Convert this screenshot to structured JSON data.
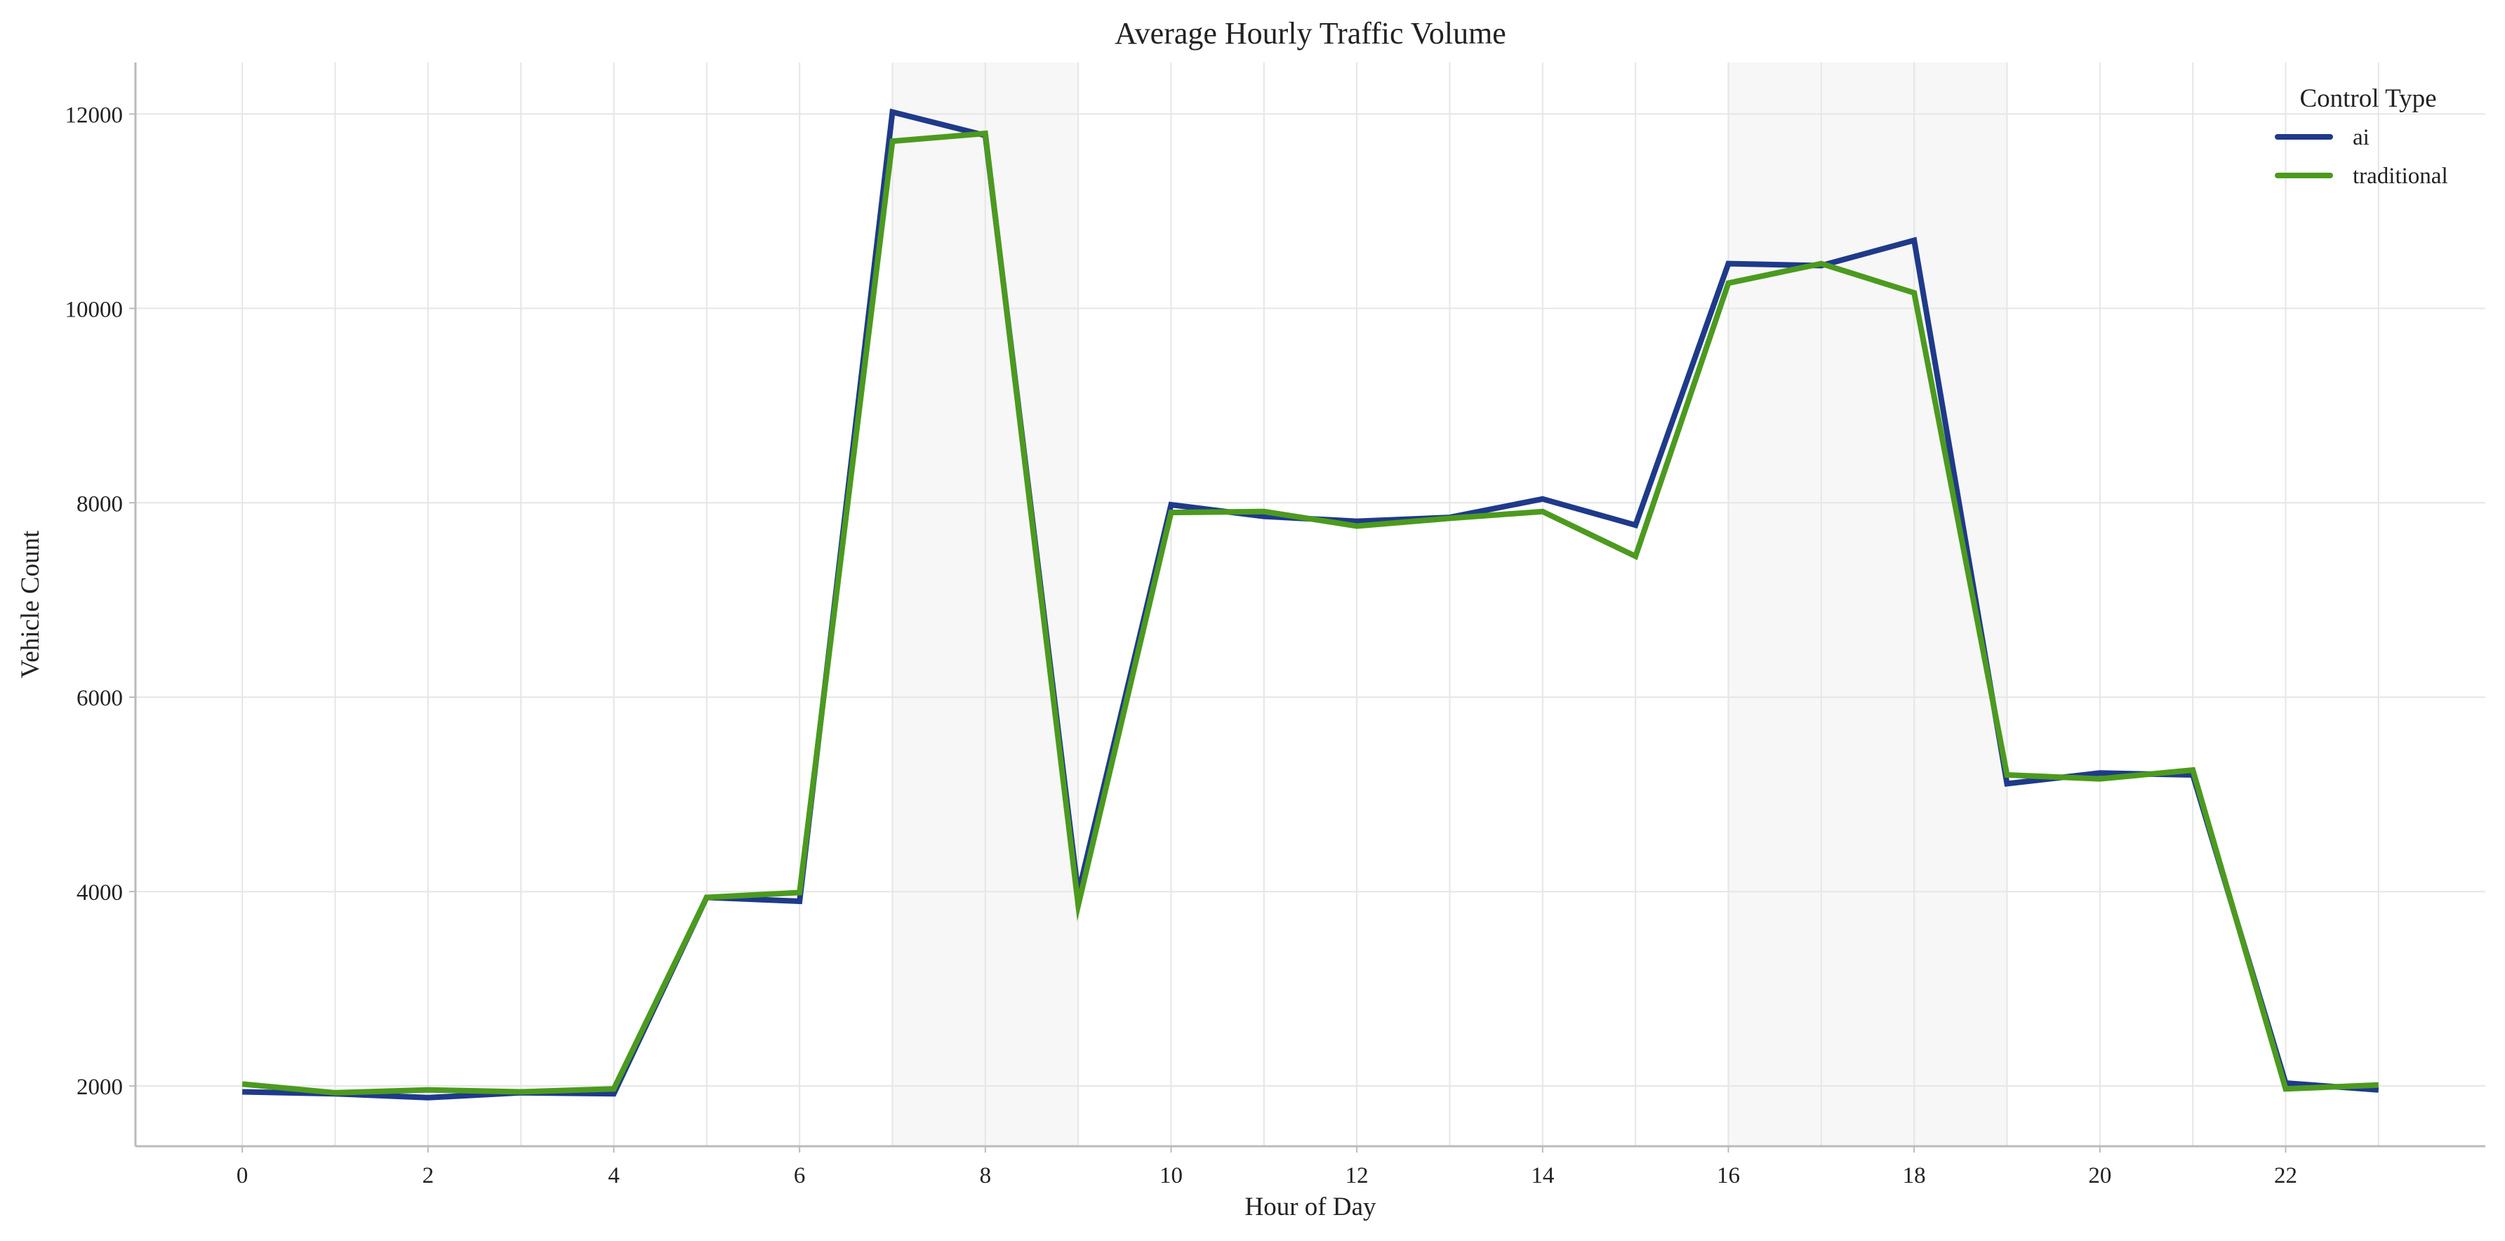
{
  "chart_data": {
    "type": "line",
    "title": "Average Hourly Traffic Volume",
    "xlabel": "Hour of Day",
    "ylabel": "Vehicle Count",
    "xlim": [
      -1.15,
      24.15
    ],
    "ylim": [
      1380,
      12530
    ],
    "x": [
      0,
      1,
      2,
      3,
      4,
      5,
      6,
      7,
      8,
      9,
      10,
      11,
      12,
      13,
      14,
      15,
      16,
      17,
      18,
      19,
      20,
      21,
      22,
      23
    ],
    "x_ticks": [
      0,
      2,
      4,
      6,
      8,
      10,
      12,
      14,
      16,
      18,
      20,
      22
    ],
    "y_ticks": [
      2000,
      4000,
      6000,
      8000,
      10000,
      12000
    ],
    "grid": true,
    "shaded_ranges": [
      [
        7,
        9
      ],
      [
        16,
        19
      ]
    ],
    "legend": {
      "title": "Control Type",
      "placement": "top-right"
    },
    "series": [
      {
        "name": "ai",
        "color": "#1f3a8a",
        "values": [
          1940,
          1920,
          1880,
          1930,
          1920,
          3940,
          3900,
          12020,
          11780,
          3980,
          7980,
          7860,
          7810,
          7850,
          8040,
          7770,
          10460,
          10440,
          10700,
          5110,
          5220,
          5200,
          2030,
          1960
        ]
      },
      {
        "name": "traditional",
        "color": "#4c9a1f",
        "values": [
          2020,
          1930,
          1960,
          1940,
          1970,
          3940,
          3990,
          11720,
          11800,
          3860,
          7900,
          7910,
          7760,
          7840,
          7910,
          7450,
          10260,
          10460,
          10160,
          5200,
          5160,
          5250,
          1970,
          2010
        ]
      }
    ]
  }
}
